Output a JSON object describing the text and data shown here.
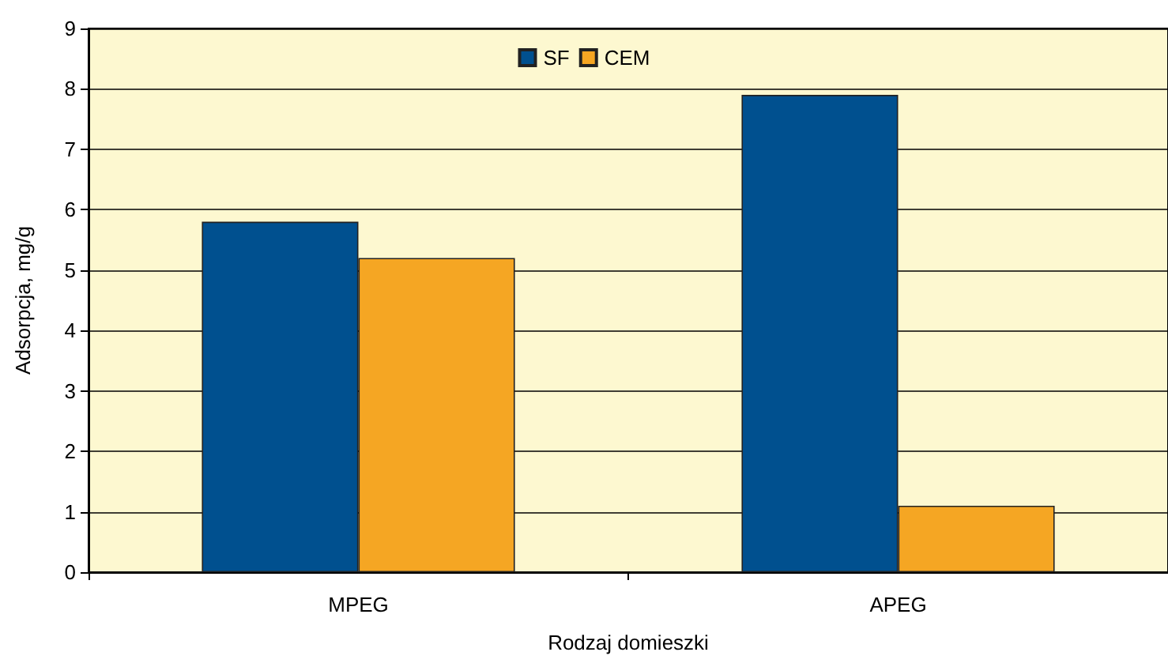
{
  "chart_data": {
    "type": "bar",
    "xlabel": "Rodzaj domieszki",
    "ylabel": "Adsorpcja, mg/g",
    "categories": [
      "MPEG",
      "APEG"
    ],
    "series": [
      {
        "name": "SF",
        "color": "#00508f",
        "values": [
          5.8,
          7.9
        ]
      },
      {
        "name": "CEM",
        "color": "#f5a623",
        "values": [
          5.2,
          1.1
        ]
      }
    ],
    "ylim": [
      0,
      9
    ],
    "yticks": [
      0,
      1,
      2,
      3,
      4,
      5,
      6,
      7,
      8,
      9
    ],
    "grid": "y",
    "legend": "top"
  }
}
